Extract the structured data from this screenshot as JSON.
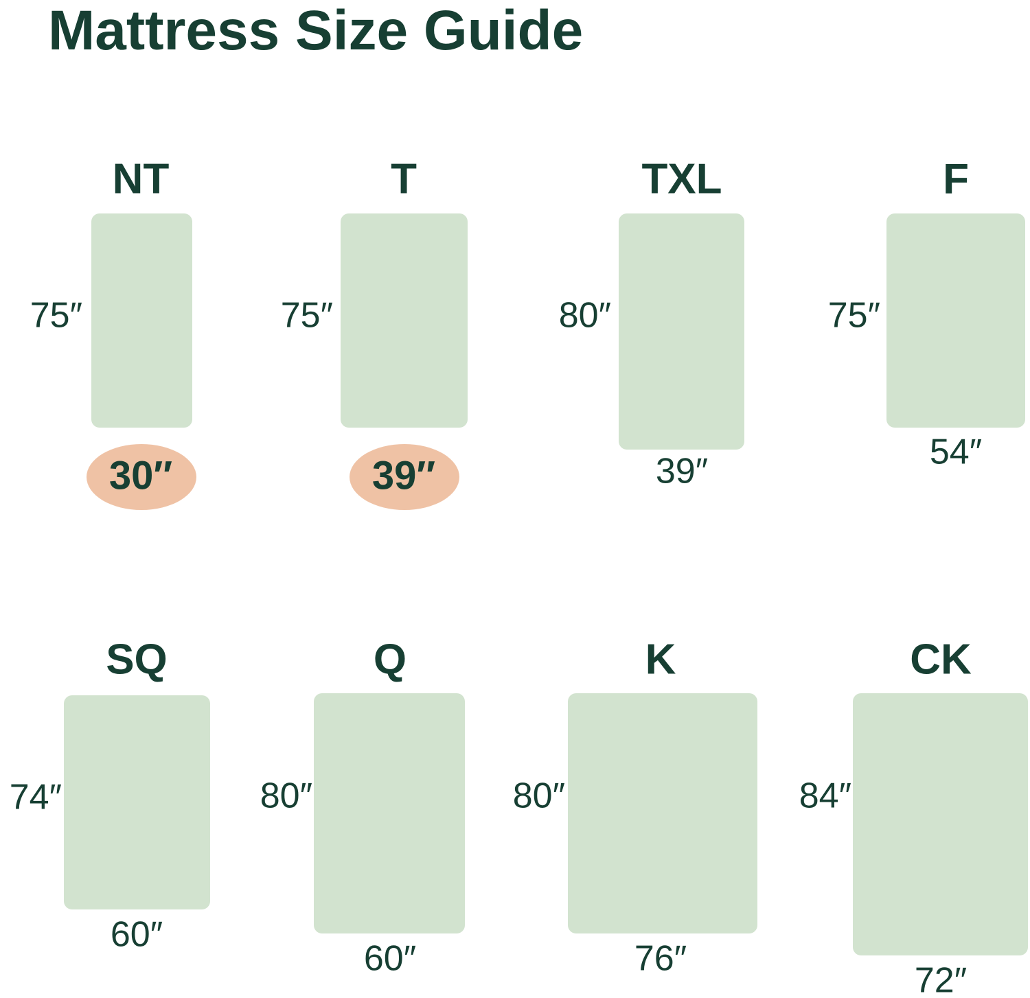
{
  "title": "Mattress Size Guide",
  "sizes": [
    {
      "label": "NT",
      "height": "75″",
      "width": "30″"
    },
    {
      "label": "T",
      "height": "75″",
      "width": "39″"
    },
    {
      "label": "TXL",
      "height": "80″",
      "width": "39″"
    },
    {
      "label": "F",
      "height": "75″",
      "width": "54″"
    },
    {
      "label": "SQ",
      "height": "74″",
      "width": "60″"
    },
    {
      "label": "Q",
      "height": "80″",
      "width": "60″"
    },
    {
      "label": "K",
      "height": "80″",
      "width": "76″"
    },
    {
      "label": "CK",
      "height": "84″",
      "width": "72″"
    }
  ]
}
